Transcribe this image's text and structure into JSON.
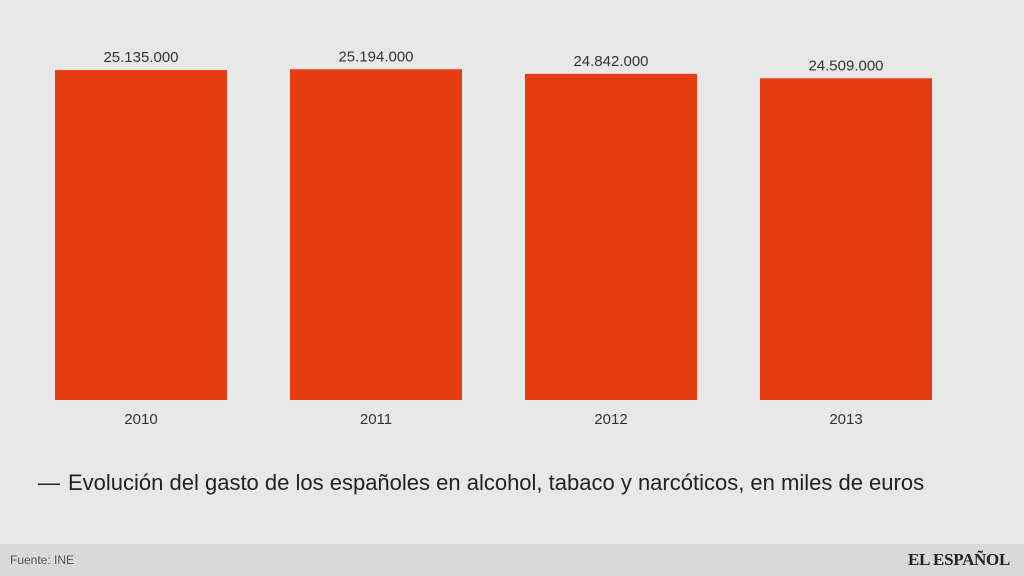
{
  "chart_data": {
    "type": "bar",
    "categories": [
      "2010",
      "2011",
      "2012",
      "2013"
    ],
    "values": [
      25135000,
      25194000,
      24842000,
      24509000
    ],
    "value_labels": [
      "25.135.000",
      "25.194.000",
      "24.842.000",
      "24.509.000"
    ],
    "title": "Evolución del gasto de los españoles en alcohol, tabaco y narcóticos, en miles de euros",
    "xlabel": "",
    "ylabel": "",
    "ylim": [
      0,
      25900000
    ],
    "grid": false,
    "colors": {
      "bar": "#e53d13"
    }
  },
  "footer": {
    "source": "Fuente: INE",
    "brand": "EL ESPAÑOL"
  }
}
